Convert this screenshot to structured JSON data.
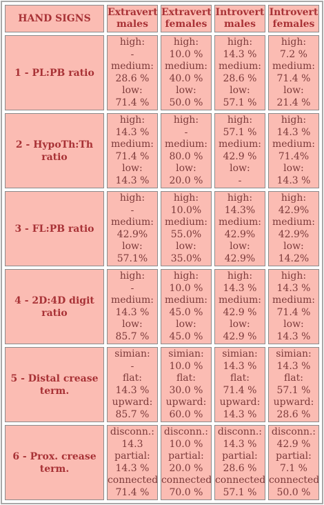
{
  "header": {
    "col0": "HAND SIGNS",
    "col1a": "Extravert",
    "col1b": "males",
    "col2a": "Extravert",
    "col2b": "females",
    "col3a": "Introvert",
    "col3b": "males",
    "col4a": "Introvert",
    "col4b": "females"
  },
  "rows": [
    {
      "label": "1 - PL:PB ratio",
      "cells": [
        [
          "high:",
          "-",
          "medium:",
          "28.6 %",
          "low:",
          "71.4 %"
        ],
        [
          "high:",
          "10.0 %",
          "medium:",
          "40.0 %",
          "low:",
          "50.0 %"
        ],
        [
          "high:",
          "14.3 %",
          "medium:",
          "28.6 %",
          "low:",
          "57.1 %"
        ],
        [
          "high:",
          "7.2 %",
          "medium:",
          "71.4 %",
          "low:",
          "21.4 %"
        ]
      ]
    },
    {
      "label": "2 - HypoTh:Th ratio",
      "cells": [
        [
          "high:",
          "14.3 %",
          "medium:",
          "71.4 %",
          "low:",
          "14.3 %"
        ],
        [
          "high:",
          "-",
          "medium:",
          "80.0 %",
          "low:",
          "20.0 %"
        ],
        [
          "high:",
          "57.1 %",
          "medium:",
          "42.9 %",
          "low:",
          "-"
        ],
        [
          "high:",
          "14.3 %",
          "medium:",
          "71.4%",
          "low:",
          "14.3 %"
        ]
      ]
    },
    {
      "label": "3 - FL:PB ratio",
      "cells": [
        [
          "high:",
          "-",
          "medium:",
          "42.9%",
          "low:",
          "57.1%"
        ],
        [
          "high:",
          "10.0%",
          "medium:",
          "55.0%",
          "low:",
          "35.0%"
        ],
        [
          "high:",
          "14.3%",
          "medium:",
          "42.9%",
          "low:",
          "42.9%"
        ],
        [
          "high:",
          "42.9%",
          "medium:",
          "42.9%",
          "low:",
          "14.2%"
        ]
      ]
    },
    {
      "label": "4 - 2D:4D digit ratio",
      "cells": [
        [
          "high:",
          "-",
          "medium:",
          "14.3 %",
          "low:",
          "85.7 %"
        ],
        [
          "high:",
          "10.0 %",
          "medium:",
          "45.0 %",
          "low:",
          "45.0 %"
        ],
        [
          "high:",
          "14.3 %",
          "medium:",
          "42.9 %",
          "low:",
          "42.9 %"
        ],
        [
          "high:",
          "14.3 %",
          "medium:",
          "71.4 %",
          "low:",
          "14.3 %"
        ]
      ]
    },
    {
      "label": "5 - Distal crease term.",
      "cells": [
        [
          "simian:",
          "-",
          "flat:",
          "14.3 %",
          "upward:",
          "85.7 %"
        ],
        [
          "simian:",
          "10.0 %",
          "flat:",
          "30.0 %",
          "upward:",
          "60.0 %"
        ],
        [
          "simian:",
          "14.3 %",
          "flat:",
          "71.4 %",
          "upward:",
          "14.3 %"
        ],
        [
          "simian:",
          "14.3 %",
          "flat:",
          "57.1 %",
          "upward:",
          "28.6 %"
        ]
      ]
    },
    {
      "label": "6 - Prox. crease term.",
      "cells": [
        [
          "disconn.:",
          "14.3",
          "partial:",
          "14.3 %",
          "connected:",
          "71.4 %"
        ],
        [
          "disconn.:",
          "10.0 %",
          "partial:",
          "20.0 %",
          "connected:",
          "70.0 %"
        ],
        [
          "disconn.:",
          "14.3 %",
          "partial:",
          "28.6 %",
          "connected:",
          "57.1 %"
        ],
        [
          "disconn.:",
          "42.9 %",
          "partial:",
          "7.1 %",
          "connected:",
          "50.0 %"
        ]
      ]
    }
  ]
}
